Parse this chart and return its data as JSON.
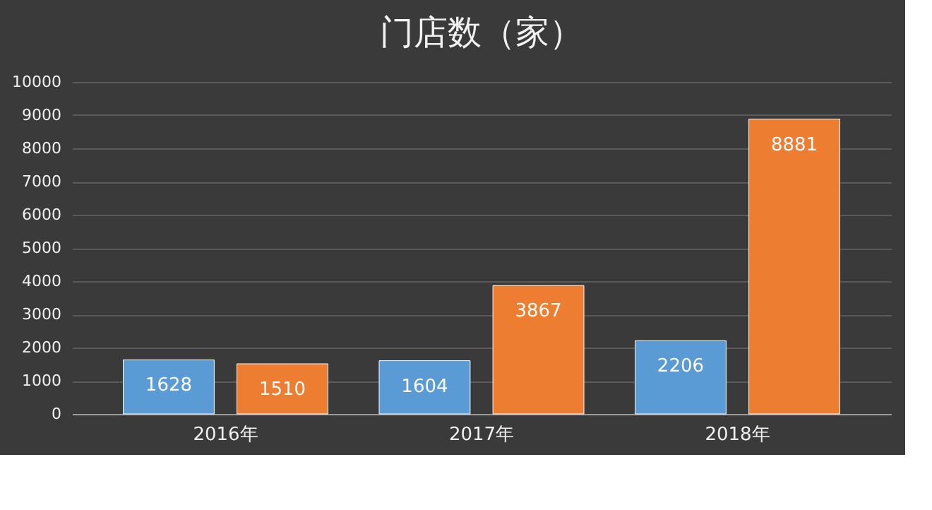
{
  "chart_data": {
    "type": "bar",
    "title": "门店数（家）",
    "categories": [
      "2016年",
      "2017年",
      "2018年"
    ],
    "series": [
      {
        "color": "#5b9bd5",
        "values": [
          1628,
          1604,
          2206
        ]
      },
      {
        "color": "#ed7d31",
        "values": [
          1510,
          3867,
          8881
        ]
      }
    ],
    "ylim": [
      0,
      10000
    ],
    "yticks": [
      0,
      1000,
      2000,
      3000,
      4000,
      5000,
      6000,
      7000,
      8000,
      9000,
      10000
    ],
    "grid": "y",
    "data_labels": true,
    "legend": false
  }
}
